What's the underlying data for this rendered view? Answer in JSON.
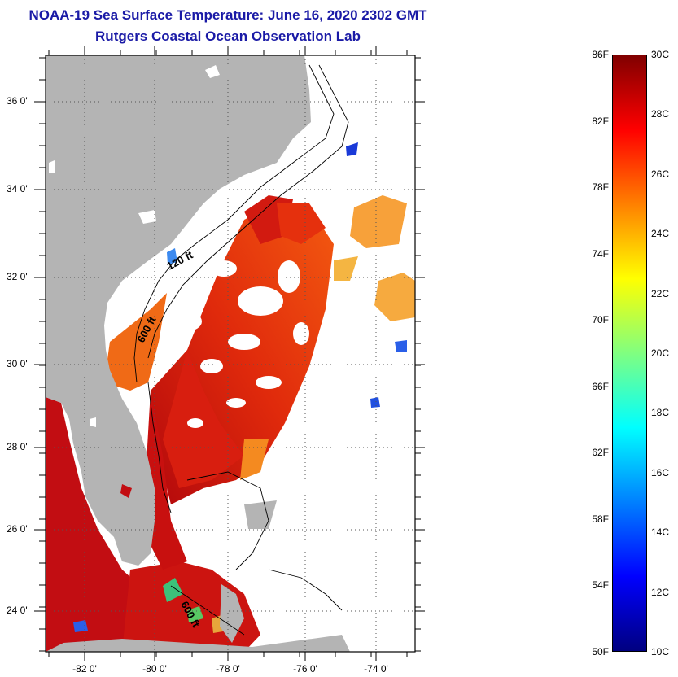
{
  "title": {
    "line1": "NOAA-19 Sea Surface Temperature:  June 16, 2020 2302 GMT",
    "line2": "Rutgers Coastal Ocean Observation Lab"
  },
  "map": {
    "latitude_labels": [
      "36 0'",
      "34 0'",
      "32 0'",
      "30 0'",
      "28 0'",
      "26 0'",
      "24 0'"
    ],
    "longitude_labels": [
      "-82 0'",
      "-80 0'",
      "-78 0'",
      "-76 0'",
      "-74 0'"
    ],
    "contour_labels": [
      "120 ft",
      "600 ft",
      "600 ft"
    ],
    "colors": {
      "land": "#b4b4b4",
      "cloud_nodata": "#ffffff"
    }
  },
  "colorbar": {
    "fahrenheit_labels": [
      "86F",
      "82F",
      "78F",
      "74F",
      "70F",
      "66F",
      "62F",
      "58F",
      "54F",
      "50F"
    ],
    "celsius_labels": [
      "30C",
      "28C",
      "26C",
      "24C",
      "22C",
      "20C",
      "18C",
      "16C",
      "14C",
      "12C",
      "10C"
    ],
    "range_celsius": [
      10,
      30
    ],
    "range_fahrenheit": [
      50,
      86
    ],
    "colormap": "jet"
  }
}
